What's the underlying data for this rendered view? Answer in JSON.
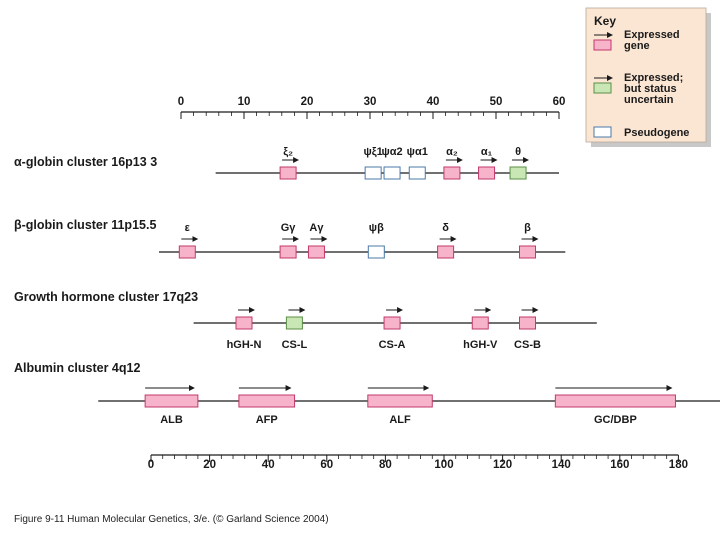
{
  "colors": {
    "expressed": "#f7b3c9",
    "uncertain": "#c9e7b5",
    "pseudogene": "#ffffff",
    "box_stroke": "#c23a6b",
    "key_bg": "#fbe6d4",
    "key_shadow": "#c8c8c8"
  },
  "key": {
    "title": "Key",
    "items": [
      {
        "status": "expressed",
        "lines": [
          "Expressed",
          "gene"
        ],
        "arrow": true
      },
      {
        "status": "uncertain",
        "lines": [
          "Expressed;",
          "but status",
          "uncertain"
        ],
        "arrow": true
      },
      {
        "status": "pseudogene",
        "lines": [
          "Pseudogene"
        ],
        "arrow": false
      }
    ]
  },
  "top_scale": {
    "ticks": [
      "0",
      "10",
      "20",
      "30",
      "40",
      "50",
      "60"
    ],
    "unit": "kb"
  },
  "bottom_scale": {
    "ticks": [
      "0",
      "20",
      "40",
      "60",
      "80",
      "100",
      "120",
      "140",
      "160",
      "180"
    ],
    "unit": "kb"
  },
  "clusters": [
    {
      "title": "α-globin cluster 16p13 3",
      "scale": "top",
      "line_range": [
        5.5,
        60
      ],
      "genes": [
        {
          "label": "ξ₂",
          "pos": 17,
          "status": "expressed",
          "arrow": true
        },
        {
          "label": "ψξ1",
          "pos": 30.5,
          "status": "pseudogene",
          "arrow": false
        },
        {
          "label": "ψα2",
          "pos": 33.5,
          "status": "pseudogene",
          "arrow": false
        },
        {
          "label": "ψα1",
          "pos": 37.5,
          "status": "pseudogene",
          "arrow": false
        },
        {
          "label": "α₂",
          "pos": 43,
          "status": "expressed",
          "arrow": true
        },
        {
          "label": "α₁",
          "pos": 48.5,
          "status": "expressed",
          "arrow": true
        },
        {
          "label": "θ",
          "pos": 53.5,
          "status": "uncertain",
          "arrow": true
        }
      ]
    },
    {
      "title": "β-globin cluster 11p15.5",
      "scale": "top",
      "line_range": [
        -3.5,
        61
      ],
      "genes": [
        {
          "label": "ε",
          "pos": 1,
          "status": "expressed",
          "arrow": true
        },
        {
          "label": "Gγ",
          "pos": 17,
          "status": "expressed",
          "arrow": true
        },
        {
          "label": "Aγ",
          "pos": 21.5,
          "status": "expressed",
          "arrow": true
        },
        {
          "label": "ψβ",
          "pos": 31,
          "status": "pseudogene",
          "arrow": false
        },
        {
          "label": "δ",
          "pos": 42,
          "status": "expressed",
          "arrow": true
        },
        {
          "label": "β",
          "pos": 55,
          "status": "expressed",
          "arrow": true
        }
      ]
    },
    {
      "title": "Growth hormone cluster 17q23",
      "scale": "top",
      "line_range": [
        2,
        66
      ],
      "genes": [
        {
          "label": "hGH-N",
          "pos": 10,
          "status": "expressed",
          "arrow": true
        },
        {
          "label": "CS-L",
          "pos": 18,
          "status": "uncertain",
          "arrow": true
        },
        {
          "label": "CS-A",
          "pos": 33.5,
          "status": "expressed",
          "arrow": true
        },
        {
          "label": "hGH-V",
          "pos": 47.5,
          "status": "expressed",
          "arrow": true
        },
        {
          "label": "CS-B",
          "pos": 55,
          "status": "expressed",
          "arrow": true
        }
      ]
    },
    {
      "title": "Albumin cluster 4q12",
      "scale": "bottom",
      "line_range": [
        -18,
        197
      ],
      "genes": [
        {
          "label": "ALB",
          "start": -2,
          "end": 16,
          "status": "expressed",
          "arrow": true
        },
        {
          "label": "AFP",
          "start": 30,
          "end": 49,
          "status": "expressed",
          "arrow": true
        },
        {
          "label": "ALF",
          "start": 74,
          "end": 96,
          "status": "expressed",
          "arrow": true
        },
        {
          "label": "GC/DBP",
          "start": 138,
          "end": 179,
          "status": "expressed",
          "arrow": true
        }
      ]
    }
  ],
  "caption": "Figure 9-11  Human Molecular Genetics, 3/e.  (© Garland Science 2004)"
}
